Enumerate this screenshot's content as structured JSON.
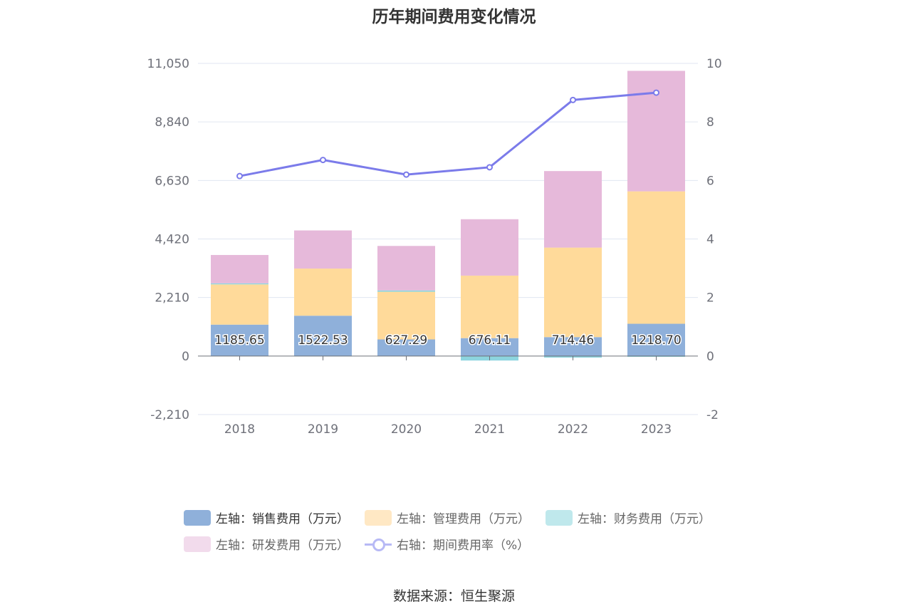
{
  "chart_data": {
    "type": "bar",
    "title": "历年期间费用变化情况",
    "categories": [
      "2018",
      "2019",
      "2020",
      "2021",
      "2022",
      "2023"
    ],
    "left_axis": {
      "ylim": [
        -2210,
        11050
      ],
      "ticks": [
        -2210,
        0,
        2210,
        4420,
        6630,
        8840,
        11050
      ],
      "tick_labels": [
        "-2,210",
        "0",
        "2,210",
        "4,420",
        "6,630",
        "8,840",
        "11,050"
      ]
    },
    "right_axis": {
      "ylim": [
        -2,
        10
      ],
      "ticks": [
        -2,
        0,
        2,
        4,
        6,
        8,
        10
      ],
      "tick_labels": [
        "-2",
        "0",
        "2",
        "4",
        "6",
        "8",
        "10"
      ]
    },
    "series": [
      {
        "name": "左轴：销售费用（万元）",
        "type": "bar",
        "stack": true,
        "color": "#8fb0da",
        "values": [
          1185.65,
          1522.53,
          627.29,
          676.11,
          714.46,
          1218.7
        ],
        "labels": [
          "1185.65",
          "1522.53",
          "627.29",
          "676.11",
          "714.46",
          "1218.70"
        ]
      },
      {
        "name": "左轴：管理费用（万元）",
        "type": "bar",
        "stack": true,
        "color": "#ffda9a",
        "values": [
          1520,
          1780,
          1800,
          2360,
          3380,
          5000
        ]
      },
      {
        "name": "左轴：财务费用（万元）",
        "type": "bar",
        "stack": true,
        "color": "#8dd5df",
        "values": [
          40,
          -10,
          50,
          -170,
          -60,
          -30
        ]
      },
      {
        "name": "左轴：研发费用（万元）",
        "type": "bar",
        "stack": true,
        "color": "#e6b9da",
        "values": [
          1070,
          1440,
          1680,
          2130,
          2890,
          4550
        ]
      },
      {
        "name": "右轴：期间费用率（%）",
        "type": "line",
        "axis": "right",
        "color": "#7b7bea",
        "values": [
          6.15,
          6.7,
          6.2,
          6.45,
          8.75,
          9.0
        ]
      }
    ],
    "legend_position": "bottom",
    "grid": true
  },
  "legend": {
    "items": [
      {
        "label": "左轴：销售费用（万元）",
        "color": "#8fb0da"
      },
      {
        "label": "左轴：管理费用（万元）",
        "color": "#ffe8c4"
      },
      {
        "label": "左轴：财务费用（万元）",
        "color": "#bfe8ec"
      },
      {
        "label": "左轴：研发费用（万元）",
        "color": "#f2dbec"
      },
      {
        "label": "右轴：期间费用率（%）",
        "color": "#b7b9f5"
      }
    ]
  },
  "source": "数据来源：恒生聚源"
}
